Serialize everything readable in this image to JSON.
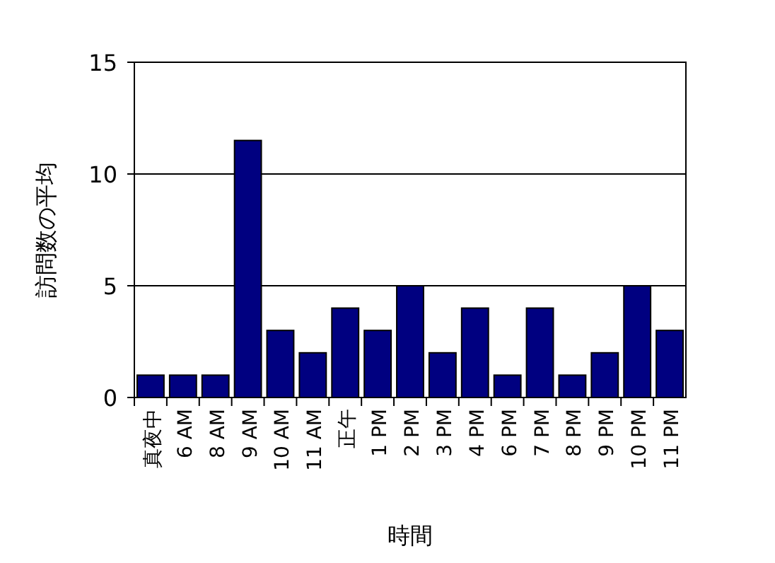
{
  "chart_data": {
    "type": "bar",
    "xlabel": "時間",
    "ylabel": "訪問数の平均",
    "categories": [
      "真夜中",
      "6 AM",
      "8 AM",
      "9 AM",
      "10 AM",
      "11 AM",
      "正午",
      "1 PM",
      "2 PM",
      "3 PM",
      "4 PM",
      "6 PM",
      "7 PM",
      "8 PM",
      "9 PM",
      "10 PM",
      "11 PM"
    ],
    "values": [
      1,
      1,
      1,
      11.5,
      3,
      2,
      4,
      3,
      5,
      2,
      4,
      1,
      4,
      1,
      2,
      5,
      3
    ],
    "color": "#000080",
    "ylim": [
      0,
      15
    ],
    "yticks": [
      0,
      5,
      10,
      15
    ],
    "grid": "y"
  }
}
